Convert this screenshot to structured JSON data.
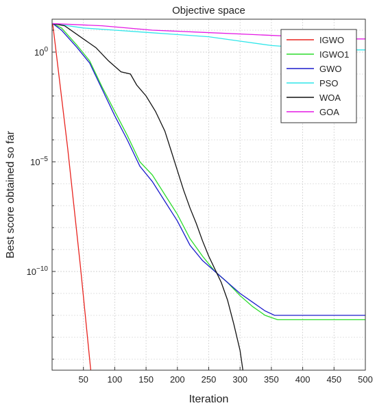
{
  "chart_data": {
    "type": "line",
    "title": "Objective space",
    "xlabel": "Iteration",
    "ylabel": "Best score obtained so far",
    "xlim": [
      0,
      500
    ],
    "ylog": true,
    "ylim_exp": [
      -14.5,
      1.5
    ],
    "xticks": [
      50,
      100,
      150,
      200,
      250,
      300,
      350,
      400,
      450,
      500
    ],
    "yticks": [
      {
        "exp": 0,
        "base": "10",
        "sup": "0"
      },
      {
        "exp": -5,
        "base": "10",
        "sup": "−5"
      },
      {
        "exp": -10,
        "base": "10",
        "sup": "−10"
      }
    ],
    "grid": true,
    "legend_position": "top-right",
    "series": [
      {
        "name": "IGWO",
        "color": "#e8231e",
        "points": [
          [
            1,
            1.3
          ],
          [
            25,
            -4.4
          ],
          [
            45,
            -9.7
          ],
          [
            62,
            -14.6
          ]
        ]
      },
      {
        "name": "IGWO1",
        "color": "#2bdc2b",
        "points": [
          [
            1,
            1.3
          ],
          [
            15,
            1.1
          ],
          [
            40,
            0.3
          ],
          [
            60,
            -0.4
          ],
          [
            80,
            -1.6
          ],
          [
            100,
            -2.7
          ],
          [
            120,
            -3.8
          ],
          [
            140,
            -5.0
          ],
          [
            160,
            -5.6
          ],
          [
            180,
            -6.5
          ],
          [
            200,
            -7.4
          ],
          [
            220,
            -8.5
          ],
          [
            240,
            -9.3
          ],
          [
            260,
            -10.0
          ],
          [
            280,
            -10.5
          ],
          [
            300,
            -11.1
          ],
          [
            320,
            -11.6
          ],
          [
            340,
            -12.0
          ],
          [
            360,
            -12.2
          ],
          [
            400,
            -12.2
          ],
          [
            500,
            -12.2
          ]
        ]
      },
      {
        "name": "GWO",
        "color": "#1a1acc",
        "points": [
          [
            1,
            1.3
          ],
          [
            15,
            1.0
          ],
          [
            40,
            0.2
          ],
          [
            60,
            -0.5
          ],
          [
            80,
            -1.7
          ],
          [
            100,
            -2.9
          ],
          [
            120,
            -4.0
          ],
          [
            140,
            -5.2
          ],
          [
            160,
            -5.9
          ],
          [
            180,
            -6.8
          ],
          [
            200,
            -7.7
          ],
          [
            220,
            -8.8
          ],
          [
            240,
            -9.5
          ],
          [
            260,
            -10.0
          ],
          [
            280,
            -10.5
          ],
          [
            300,
            -11.0
          ],
          [
            320,
            -11.4
          ],
          [
            340,
            -11.8
          ],
          [
            355,
            -12.0
          ],
          [
            400,
            -12.0
          ],
          [
            500,
            -12.0
          ]
        ]
      },
      {
        "name": "PSO",
        "color": "#2ee6ea",
        "points": [
          [
            1,
            1.3
          ],
          [
            50,
            1.1
          ],
          [
            100,
            1.0
          ],
          [
            150,
            0.9
          ],
          [
            200,
            0.8
          ],
          [
            250,
            0.7
          ],
          [
            300,
            0.5
          ],
          [
            350,
            0.3
          ],
          [
            400,
            0.2
          ],
          [
            450,
            0.1
          ],
          [
            500,
            0.1
          ]
        ]
      },
      {
        "name": "WOA",
        "color": "#111111",
        "points": [
          [
            1,
            1.3
          ],
          [
            20,
            1.2
          ],
          [
            50,
            0.6
          ],
          [
            70,
            0.2
          ],
          [
            90,
            -0.4
          ],
          [
            110,
            -0.9
          ],
          [
            125,
            -1.0
          ],
          [
            135,
            -1.5
          ],
          [
            150,
            -2.0
          ],
          [
            165,
            -2.7
          ],
          [
            180,
            -3.6
          ],
          [
            190,
            -4.5
          ],
          [
            200,
            -5.4
          ],
          [
            210,
            -6.3
          ],
          [
            220,
            -7.1
          ],
          [
            230,
            -7.8
          ],
          [
            240,
            -8.6
          ],
          [
            250,
            -9.3
          ],
          [
            260,
            -9.9
          ],
          [
            270,
            -10.5
          ],
          [
            280,
            -11.3
          ],
          [
            290,
            -12.4
          ],
          [
            300,
            -13.6
          ],
          [
            305,
            -14.6
          ]
        ]
      },
      {
        "name": "GOA",
        "color": "#e418e4",
        "points": [
          [
            1,
            1.3
          ],
          [
            80,
            1.2
          ],
          [
            160,
            1.0
          ],
          [
            240,
            0.9
          ],
          [
            320,
            0.8
          ],
          [
            400,
            0.7
          ],
          [
            460,
            0.6
          ],
          [
            500,
            0.6
          ]
        ]
      }
    ]
  }
}
